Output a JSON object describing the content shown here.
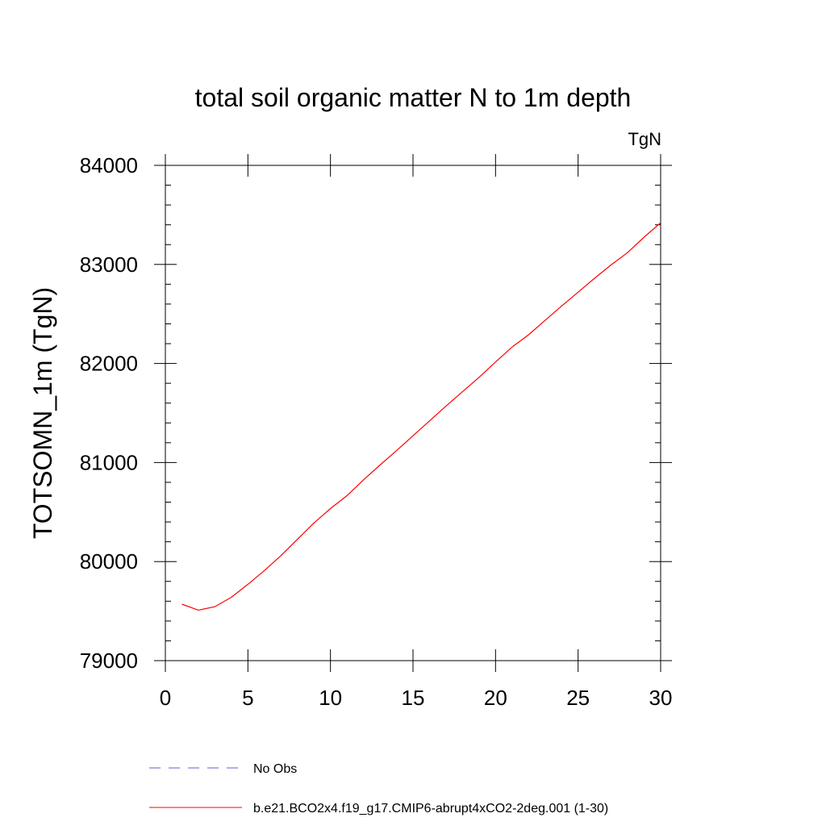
{
  "chart_data": {
    "type": "line",
    "title": "total soil organic matter N to 1m depth",
    "units_label": "TgN",
    "xlabel": "",
    "ylabel": "TOTSOMN_1m  (TgN)",
    "xlim": [
      0,
      30
    ],
    "ylim": [
      79000,
      84000
    ],
    "x_ticks": [
      "0",
      "5",
      "10",
      "15",
      "20",
      "25",
      "30"
    ],
    "y_ticks": [
      "79000",
      "80000",
      "81000",
      "82000",
      "83000",
      "84000"
    ],
    "grid": false,
    "legend_position": "bottom",
    "series": [
      {
        "name": "b.e21.BCO2x4.f19_g17.CMIP6-abrupt4xCO2-2deg.001 (1-30)",
        "color": "#ff0000",
        "style": "solid",
        "x": [
          1,
          2,
          3,
          4,
          5,
          6,
          7,
          8,
          9,
          10,
          11,
          12,
          13,
          14,
          15,
          16,
          17,
          18,
          19,
          20,
          21,
          22,
          23,
          24,
          25,
          26,
          27,
          28,
          29,
          30
        ],
        "values": [
          79570,
          79510,
          79545,
          79640,
          79770,
          79910,
          80060,
          80225,
          80390,
          80535,
          80665,
          80825,
          80975,
          81120,
          81270,
          81420,
          81570,
          81715,
          81860,
          82015,
          82165,
          82290,
          82435,
          82580,
          82720,
          82860,
          82995,
          83120,
          83275,
          83420
        ]
      },
      {
        "name": "No Obs",
        "color": "#6a5acd",
        "style": "dashed",
        "x": [],
        "values": []
      }
    ]
  }
}
